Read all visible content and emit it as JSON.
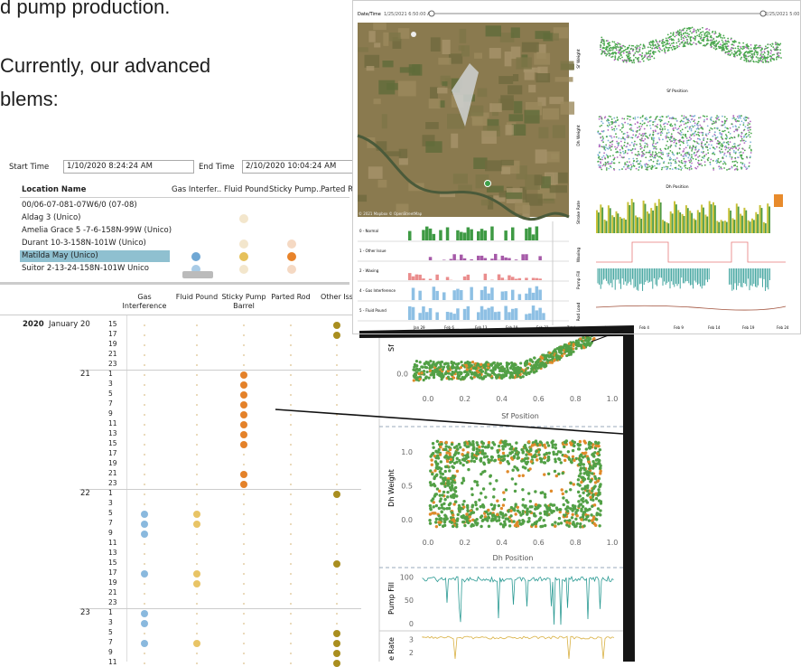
{
  "intro": [
    "d pump production.",
    "Currently, our advanced",
    "blems:"
  ],
  "filter": {
    "start_label": "Start Time",
    "start_value": "1/10/2020 8:24:24 AM",
    "end_label": "End Time",
    "end_value": "2/10/2020 10:04:24 AM"
  },
  "locations": {
    "columns": [
      "Location Name",
      "Gas Interfer..",
      "Fluid Pound",
      "Sticky Pump..",
      "Parted R"
    ],
    "selected_row": 4,
    "rows": [
      {
        "name": "00/06-07-081-07W6/0 (07-08)",
        "dots": [
          null,
          null,
          null
        ]
      },
      {
        "name": "Aldag 3 (Unico)",
        "dots": [
          null,
          "#f3e6cc",
          null
        ]
      },
      {
        "name": "Amelia Grace 5 -7-6-158N-99W (Unico)",
        "dots": [
          null,
          null,
          null
        ]
      },
      {
        "name": "Durant 10-3-158N-101W (Unico)",
        "dots": [
          null,
          "#f3e6cc",
          "#f5d9c3"
        ]
      },
      {
        "name": "Matilda May (Unico)",
        "dots": [
          "#6fa7d4",
          "#e6c15a",
          "#e8832a"
        ]
      },
      {
        "name": "Suitor 2-13-24-158N-101W Unico",
        "dots": [
          "#a9cbe6",
          "#f3e6cc",
          "#f5d9c3"
        ]
      }
    ]
  },
  "hourly": {
    "columns": [
      "Gas Interference",
      "Fluid Pound",
      "Sticky Pump Barrel",
      "Parted Rod",
      "Other Iss"
    ],
    "colors": [
      "#8ab9de",
      "#e8c466",
      "#e4822a",
      "#cccccc",
      "#a98e1f"
    ],
    "year": "2020",
    "month": "January",
    "days": [
      {
        "day": "20",
        "hours": [
          {
            "hour": "15",
            "dots": [
              4
            ]
          },
          {
            "hour": "17",
            "dots": [
              4
            ]
          },
          {
            "hour": "19",
            "dots": []
          },
          {
            "hour": "21",
            "dots": []
          },
          {
            "hour": "23",
            "dots": []
          }
        ]
      },
      {
        "day": "21",
        "hours": [
          {
            "hour": "1",
            "dots": [
              2
            ]
          },
          {
            "hour": "3",
            "dots": [
              2
            ]
          },
          {
            "hour": "5",
            "dots": [
              2
            ]
          },
          {
            "hour": "7",
            "dots": [
              2
            ]
          },
          {
            "hour": "9",
            "dots": [
              2
            ]
          },
          {
            "hour": "11",
            "dots": [
              2
            ]
          },
          {
            "hour": "13",
            "dots": [
              2
            ]
          },
          {
            "hour": "15",
            "dots": [
              2
            ]
          },
          {
            "hour": "17",
            "dots": []
          },
          {
            "hour": "19",
            "dots": []
          },
          {
            "hour": "21",
            "dots": [
              2
            ]
          },
          {
            "hour": "23",
            "dots": [
              2
            ]
          }
        ]
      },
      {
        "day": "22",
        "hours": [
          {
            "hour": "1",
            "dots": [
              4
            ]
          },
          {
            "hour": "3",
            "dots": []
          },
          {
            "hour": "5",
            "dots": [
              0,
              1
            ]
          },
          {
            "hour": "7",
            "dots": [
              0,
              1
            ]
          },
          {
            "hour": "9",
            "dots": [
              0
            ]
          },
          {
            "hour": "11",
            "dots": []
          },
          {
            "hour": "13",
            "dots": []
          },
          {
            "hour": "15",
            "dots": [
              4
            ]
          },
          {
            "hour": "17",
            "dots": [
              0,
              1
            ]
          },
          {
            "hour": "19",
            "dots": [
              1
            ]
          },
          {
            "hour": "21",
            "dots": []
          },
          {
            "hour": "23",
            "dots": []
          }
        ]
      },
      {
        "day": "23",
        "hours": [
          {
            "hour": "1",
            "dots": [
              0
            ]
          },
          {
            "hour": "3",
            "dots": [
              0
            ]
          },
          {
            "hour": "5",
            "dots": [
              4
            ]
          },
          {
            "hour": "7",
            "dots": [
              0,
              1,
              4
            ]
          },
          {
            "hour": "9",
            "dots": [
              4
            ]
          },
          {
            "hour": "11",
            "dots": [
              4
            ]
          }
        ]
      }
    ]
  },
  "dashboard": {
    "slider_label": "Date/Time",
    "slider_start": "1/25/2021 6:50:00 AM",
    "slider_end": "2/25/2021 5:00:00 AM",
    "map_credit": "© 2021 Mapbox © OpenStreetMap",
    "row_labels": [
      "0 - Normal",
      "1 - Other Issue",
      "2 - Waxing",
      "4 - Gas Interference",
      "5 - Fluid Pound"
    ],
    "dates_bottom": [
      "Jan 29",
      "Feb 6",
      "Feb 13",
      "Feb 19",
      "Feb 23",
      "Total"
    ],
    "right_labels": [
      "Sf Weight",
      "Sf Position",
      "Dh Weight",
      "Dh Position",
      "Stroke Rate",
      "Waxing",
      "Pump Fill",
      "Rod Load"
    ],
    "dates_right": [
      "Jan 30",
      "Feb 4",
      "Feb 9",
      "Feb 14",
      "Feb 19",
      "Feb 24"
    ]
  },
  "zoom": {
    "sf_y_label": "Sf",
    "sf_ylim": [
      -0.2,
      0.5
    ],
    "sf_yticks": [
      {
        "value": 0,
        "label": "0.0"
      }
    ],
    "xlim": [
      0,
      1
    ],
    "xticks": [
      {
        "value": 0,
        "label": "0.0"
      },
      {
        "value": 0.2,
        "label": "0.2"
      },
      {
        "value": 0.4,
        "label": "0.4"
      },
      {
        "value": 0.6,
        "label": "0.6"
      },
      {
        "value": 0.8,
        "label": "0.8"
      },
      {
        "value": 1,
        "label": "1.0"
      }
    ],
    "sf_x_label": "Sf Position",
    "dh_y_label": "Dh Weight",
    "dh_ylim": [
      -0.2,
      1.2
    ],
    "dh_yticks": [
      {
        "value": 1,
        "label": "1.0"
      },
      {
        "value": 0.5,
        "label": "0.5"
      },
      {
        "value": 0,
        "label": "0.0"
      }
    ],
    "dh_x_label": "Dh Position",
    "fill_label": "Pump Fill",
    "fill_ylim": [
      -10,
      120
    ],
    "fill_yticks": [
      100,
      50,
      0
    ],
    "rate_label": "e Rate",
    "rate_ylim": [
      1.3,
      3.4
    ],
    "rate_yticks": [
      3,
      2
    ]
  }
}
